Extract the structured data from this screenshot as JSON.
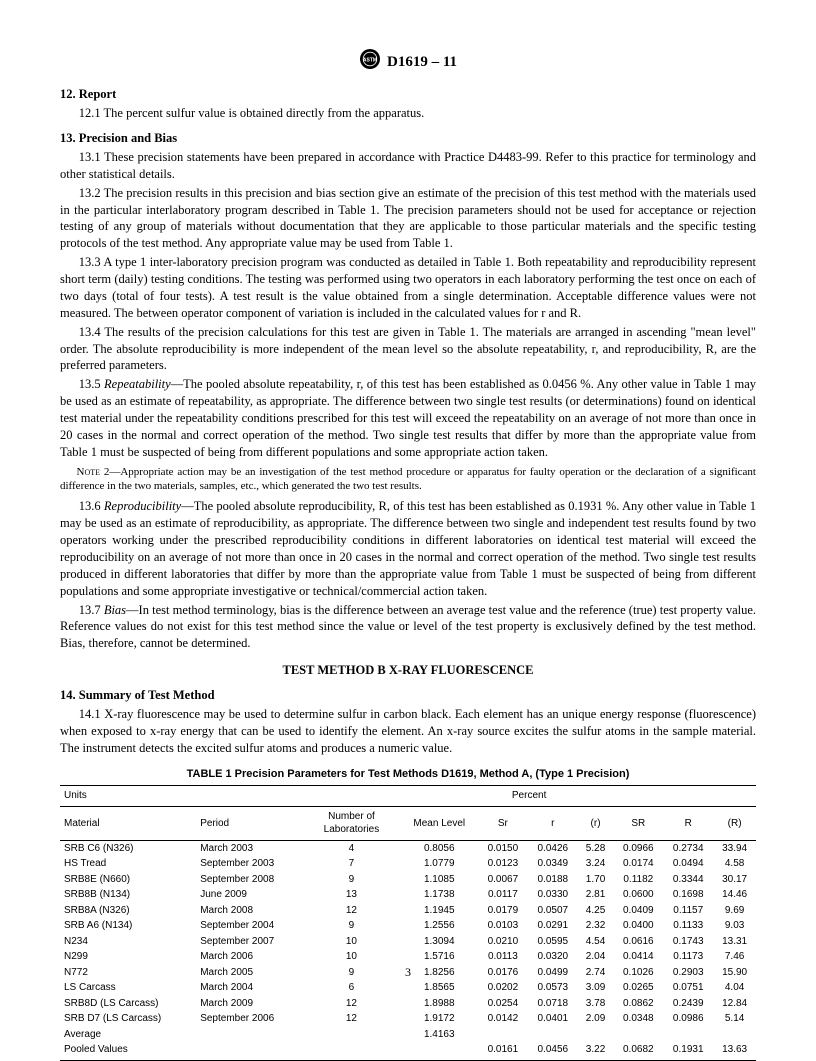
{
  "header": {
    "designation": "D1619 – 11"
  },
  "sections": {
    "s12": {
      "title": "12. Report",
      "p1": "12.1 The percent sulfur value is obtained directly from the apparatus."
    },
    "s13": {
      "title": "13. Precision and Bias",
      "p1": "13.1 These precision statements have been prepared in accordance with Practice D4483-99. Refer to this practice for terminology and other statistical details.",
      "p2": "13.2 The precision results in this precision and bias section give an estimate of the precision of this test method with the materials used in the particular interlaboratory program described in Table 1. The precision parameters should not be used for acceptance or rejection testing of any group of materials without documentation that they are applicable to those particular materials and the specific testing protocols of the test method. Any appropriate value may be used from Table 1.",
      "p3": "13.3 A type 1 inter-laboratory precision program was conducted as detailed in Table 1. Both repeatability and reproducibility represent short term (daily) testing conditions. The testing was performed using two operators in each laboratory performing the test once on each of two days (total of four tests). A test result is the value obtained from a single determination. Acceptable difference values were not measured. The between operator component of variation is included in the calculated values for r and R.",
      "p4": "13.4 The results of the precision calculations for this test are given in Table 1. The materials are arranged in ascending \"mean level\" order. The absolute reproducibility is more independent of the mean level so the absolute repeatability, r, and reproducibility, R, are the preferred parameters.",
      "p5_label": "13.5 ",
      "p5_term": "Repeatability",
      "p5_rest": "—The pooled absolute repeatability, r, of this test has been established as 0.0456 %. Any other value in Table 1 may be used as an estimate of repeatability, as appropriate. The difference between two single test results (or determinations) found on identical test material under the repeatability conditions prescribed for this test will exceed the repeatability on an average of not more than once in 20 cases in the normal and correct operation of the method. Two single test results that differ by more than the appropriate value from Table 1 must be suspected of being from different populations and some appropriate action taken.",
      "note2_label": "Note 2—",
      "note2": "Appropriate action may be an investigation of the test method procedure or apparatus for faulty operation or the declaration of a significant difference in the two materials, samples, etc., which generated the two test results.",
      "p6_label": "13.6 ",
      "p6_term": "Reproducibility",
      "p6_rest": "—The pooled absolute reproducibility, R, of this test has been established as 0.1931 %. Any other value in Table 1 may be used as an estimate of reproducibility, as appropriate. The difference between two single and independent test results found by two operators working under the prescribed reproducibility conditions in different laboratories on identical test material will exceed the reproducibility on an average of not more than once in 20 cases in the normal and correct operation of the method. Two single test results produced in different laboratories that differ by more than the appropriate value from Table 1 must be suspected of being from different populations and some appropriate investigative or technical/commercial action taken.",
      "p7_label": "13.7 ",
      "p7_term": "Bias",
      "p7_rest": "—In test method terminology, bias is the difference between an average test value and the reference (true) test property value. Reference values do not exist for this test method since the value or level of the test property is exclusively defined by the test method. Bias, therefore, cannot be determined."
    },
    "method_b": "TEST METHOD B X-RAY FLUORESCENCE",
    "s14": {
      "title": "14. Summary of Test Method",
      "p1": "14.1 X-ray fluorescence may be used to determine sulfur in carbon black. Each element has an unique energy response (fluorescence) when exposed to x-ray energy that can be used to identify the element. An x-ray source excites the sulfur atoms in the sample material. The instrument detects the excited sulfur atoms and produces a numeric value."
    }
  },
  "table": {
    "title": "TABLE 1  Precision Parameters for Test Methods D1619, Method A, (Type 1 Precision)",
    "units_label": "Units",
    "units_value": "Percent",
    "columns": [
      "Material",
      "Period",
      "Number of Laboratories",
      "Mean Level",
      "Sr",
      "r",
      "(r)",
      "SR",
      "R",
      "(R)"
    ],
    "rows": [
      [
        "SRB C6 (N326)",
        "March 2003",
        "4",
        "0.8056",
        "0.0150",
        "0.0426",
        "5.28",
        "0.0966",
        "0.2734",
        "33.94"
      ],
      [
        "HS Tread",
        "September 2003",
        "7",
        "1.0779",
        "0.0123",
        "0.0349",
        "3.24",
        "0.0174",
        "0.0494",
        "4.58"
      ],
      [
        "SRB8E (N660)",
        "September 2008",
        "9",
        "1.1085",
        "0.0067",
        "0.0188",
        "1.70",
        "0.1182",
        "0.3344",
        "30.17"
      ],
      [
        "SRB8B (N134)",
        "June 2009",
        "13",
        "1.1738",
        "0.0117",
        "0.0330",
        "2.81",
        "0.0600",
        "0.1698",
        "14.46"
      ],
      [
        "SRB8A (N326)",
        "March 2008",
        "12",
        "1.1945",
        "0.0179",
        "0.0507",
        "4.25",
        "0.0409",
        "0.1157",
        "9.69"
      ],
      [
        "SRB A6 (N134)",
        "September 2004",
        "9",
        "1.2556",
        "0.0103",
        "0.0291",
        "2.32",
        "0.0400",
        "0.1133",
        "9.03"
      ],
      [
        "N234",
        "September 2007",
        "10",
        "1.3094",
        "0.0210",
        "0.0595",
        "4.54",
        "0.0616",
        "0.1743",
        "13.31"
      ],
      [
        "N299",
        "March 2006",
        "10",
        "1.5716",
        "0.0113",
        "0.0320",
        "2.04",
        "0.0414",
        "0.1173",
        "7.46"
      ],
      [
        "N772",
        "March 2005",
        "9",
        "1.8256",
        "0.0176",
        "0.0499",
        "2.74",
        "0.1026",
        "0.2903",
        "15.90"
      ],
      [
        "LS Carcass",
        "March 2004",
        "6",
        "1.8565",
        "0.0202",
        "0.0573",
        "3.09",
        "0.0265",
        "0.0751",
        "4.04"
      ],
      [
        "SRB8D (LS Carcass)",
        "March 2009",
        "12",
        "1.8988",
        "0.0254",
        "0.0718",
        "3.78",
        "0.0862",
        "0.2439",
        "12.84"
      ],
      [
        "SRB D7 (LS Carcass)",
        "September 2006",
        "12",
        "1.9172",
        "0.0142",
        "0.0401",
        "2.09",
        "0.0348",
        "0.0986",
        "5.14"
      ]
    ],
    "average_row": [
      "Average",
      "",
      "",
      "1.4163",
      "",
      "",
      "",
      "",
      "",
      ""
    ],
    "pooled_row": [
      "Pooled Values",
      "",
      "",
      "",
      "0.0161",
      "0.0456",
      "3.22",
      "0.0682",
      "0.1931",
      "13.63"
    ]
  },
  "page_number": "3"
}
